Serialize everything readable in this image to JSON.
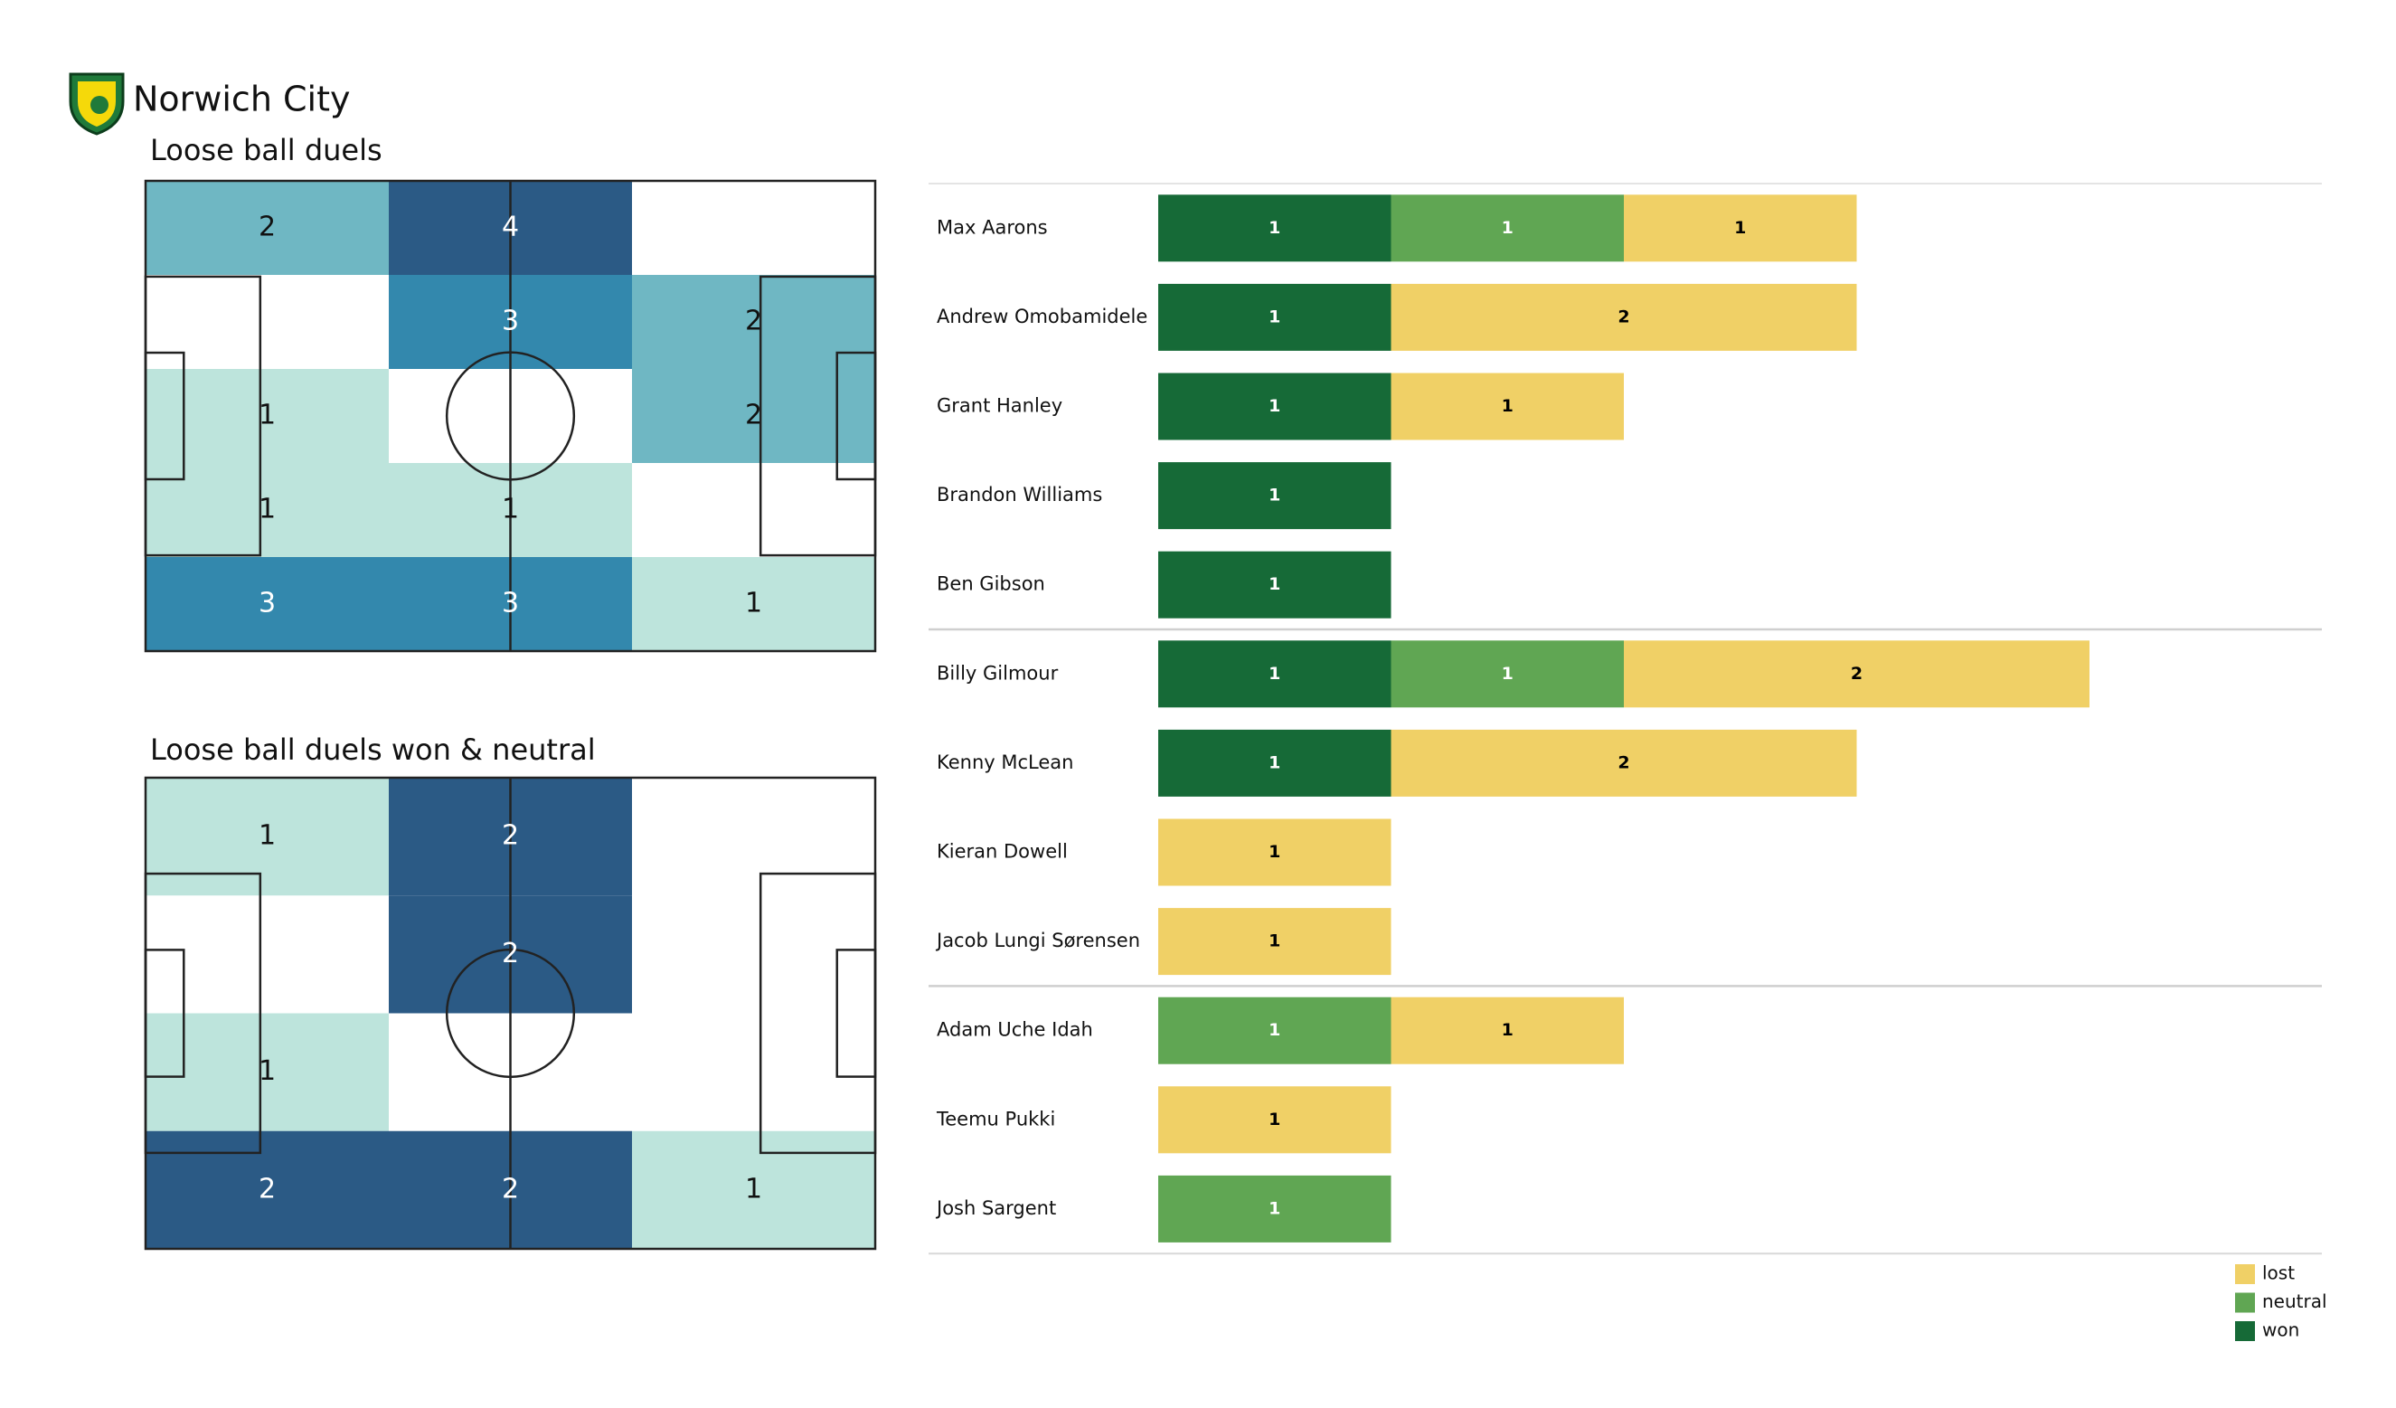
{
  "title": "Norwich City",
  "chart_data": [
    {
      "type": "heatmap",
      "title": "Loose ball duels",
      "values": [
        [
          2,
          4,
          null
        ],
        [
          null,
          3,
          2
        ],
        [
          1,
          null,
          2
        ],
        [
          1,
          1,
          null
        ],
        [
          3,
          3,
          1
        ]
      ],
      "cmap": [
        "#bde4dc",
        "#6fb7c3",
        "#3388ad",
        "#2b5a85"
      ]
    },
    {
      "type": "heatmap",
      "title": "Loose ball duels won & neutral",
      "values": [
        [
          1,
          2,
          null
        ],
        [
          null,
          2,
          null
        ],
        [
          1,
          null,
          null
        ],
        [
          2,
          2,
          1
        ]
      ],
      "cmap": [
        "#bde4dc",
        "#6fb7c3",
        "#3388ad",
        "#2b5a85"
      ]
    },
    {
      "type": "bar",
      "orientation": "horizontal",
      "stacked": true,
      "categories": [
        "Max Aarons",
        "Andrew Omobamidele",
        "Grant Hanley",
        "Brandon Williams",
        "Ben Gibson",
        "Billy Gilmour",
        "Kenny McLean",
        "Kieran Dowell",
        "Jacob  Lungi Sørensen",
        "Adam Uche Idah",
        "Teemu Pukki",
        "Josh Sargent"
      ],
      "series": [
        {
          "name": "won",
          "color": "#166a37",
          "label_color": "#ffffff",
          "values": [
            1,
            1,
            1,
            1,
            1,
            1,
            1,
            0,
            0,
            0,
            0,
            0
          ]
        },
        {
          "name": "neutral",
          "color": "#60a653",
          "label_color": "#ffffff",
          "values": [
            1,
            0,
            0,
            0,
            0,
            1,
            0,
            0,
            0,
            1,
            0,
            1
          ]
        },
        {
          "name": "lost",
          "color": "#f0d066",
          "label_color": "#000000",
          "values": [
            1,
            2,
            1,
            0,
            0,
            2,
            2,
            1,
            1,
            1,
            1,
            0
          ]
        }
      ],
      "legend": "bottom-right"
    }
  ]
}
